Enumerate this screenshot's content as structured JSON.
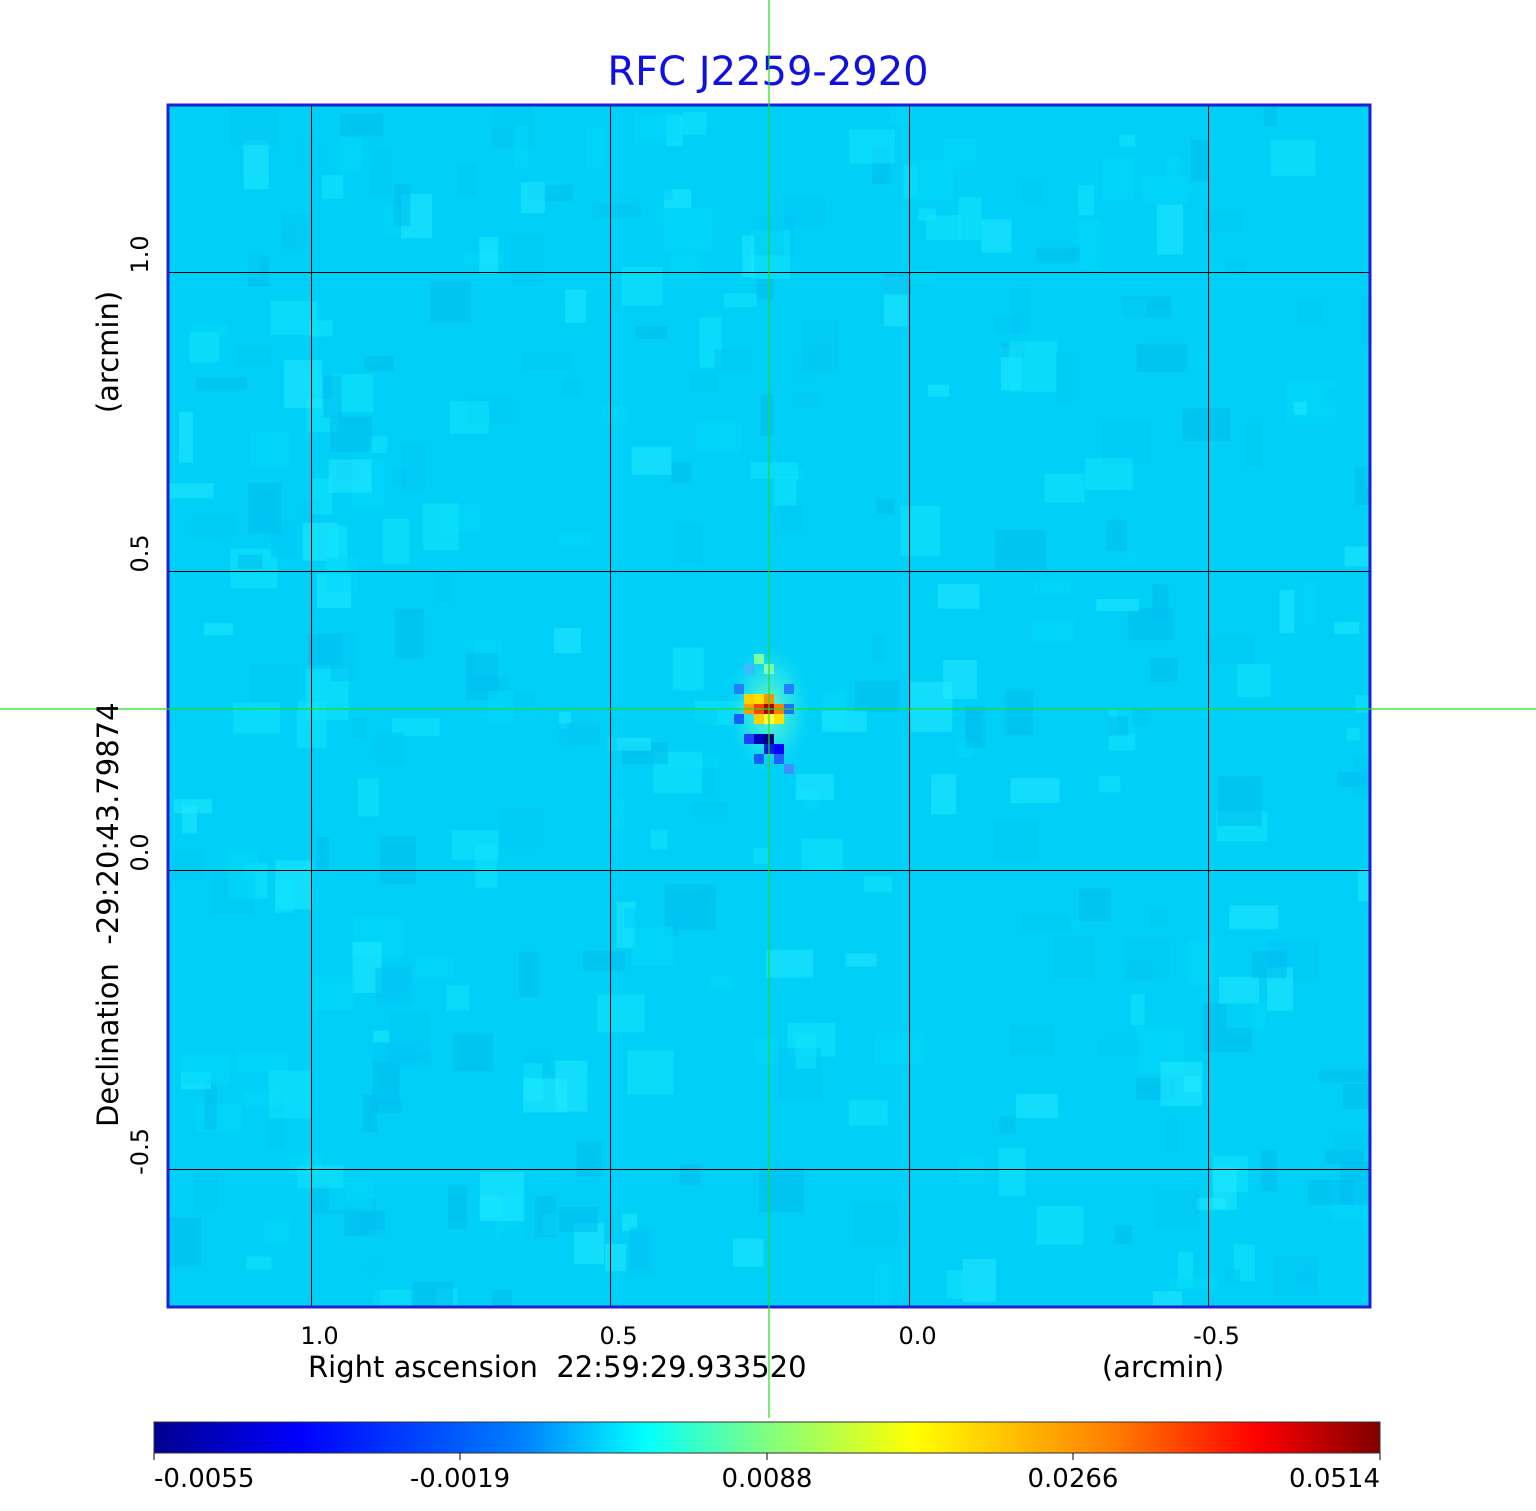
{
  "chart_data": {
    "type": "heatmap",
    "title": "RFC J2259-2920",
    "xlabel": "Right ascension  22:59:29.933520",
    "xunit": "(arcmin)",
    "ylabel": "Declination  -29:20:43.79874",
    "yunit": "(arcmin)",
    "xlim": [
      1.24,
      -0.77
    ],
    "ylim": [
      -0.73,
      1.28
    ],
    "x_ticks": [
      {
        "value": 1.0,
        "label": "1.0"
      },
      {
        "value": 0.5,
        "label": "0.5"
      },
      {
        "value": 0.0,
        "label": "0.0"
      },
      {
        "value": -0.5,
        "label": "-0.5"
      }
    ],
    "y_ticks": [
      {
        "value": 1.0,
        "label": "1.0"
      },
      {
        "value": 0.5,
        "label": "0.5"
      },
      {
        "value": 0.0,
        "label": "0.0"
      },
      {
        "value": -0.5,
        "label": "-0.5"
      }
    ],
    "grid": true,
    "crosshair": {
      "x": 0.235,
      "y": 0.27
    },
    "peak": {
      "x": 0.235,
      "y": 0.27,
      "value": 0.0514
    },
    "colormap": "jet",
    "colorbar": {
      "min": -0.0055,
      "max": 0.0514,
      "ticks": [
        "-0.0055",
        "-0.0019",
        "0.0088",
        "0.0266",
        "0.0514"
      ]
    },
    "colors": {
      "title": "#1010e0",
      "frame": "#2020d0",
      "crosshair": "#22dd22",
      "background_level": "#00d0f8"
    }
  }
}
